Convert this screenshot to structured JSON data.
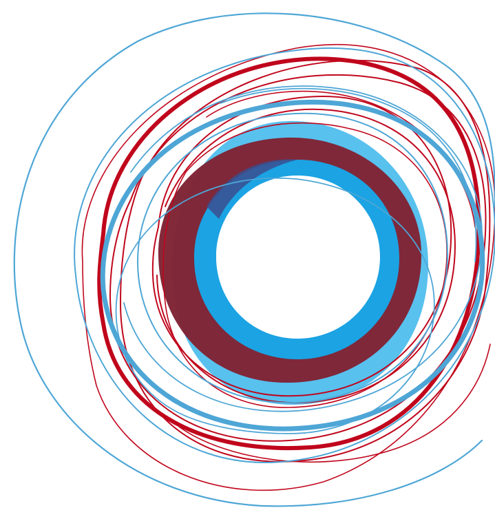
{
  "artwork": {
    "subject": "abstract-swirl",
    "colors": {
      "background": "#ffffff",
      "dark_red": "#7f2334",
      "red": "#c0061c",
      "light_blue": "#58c1ee",
      "blue": "#1ba3e3",
      "steel_blue": "#4ea6d6",
      "navy": "#3a4f8f"
    }
  }
}
